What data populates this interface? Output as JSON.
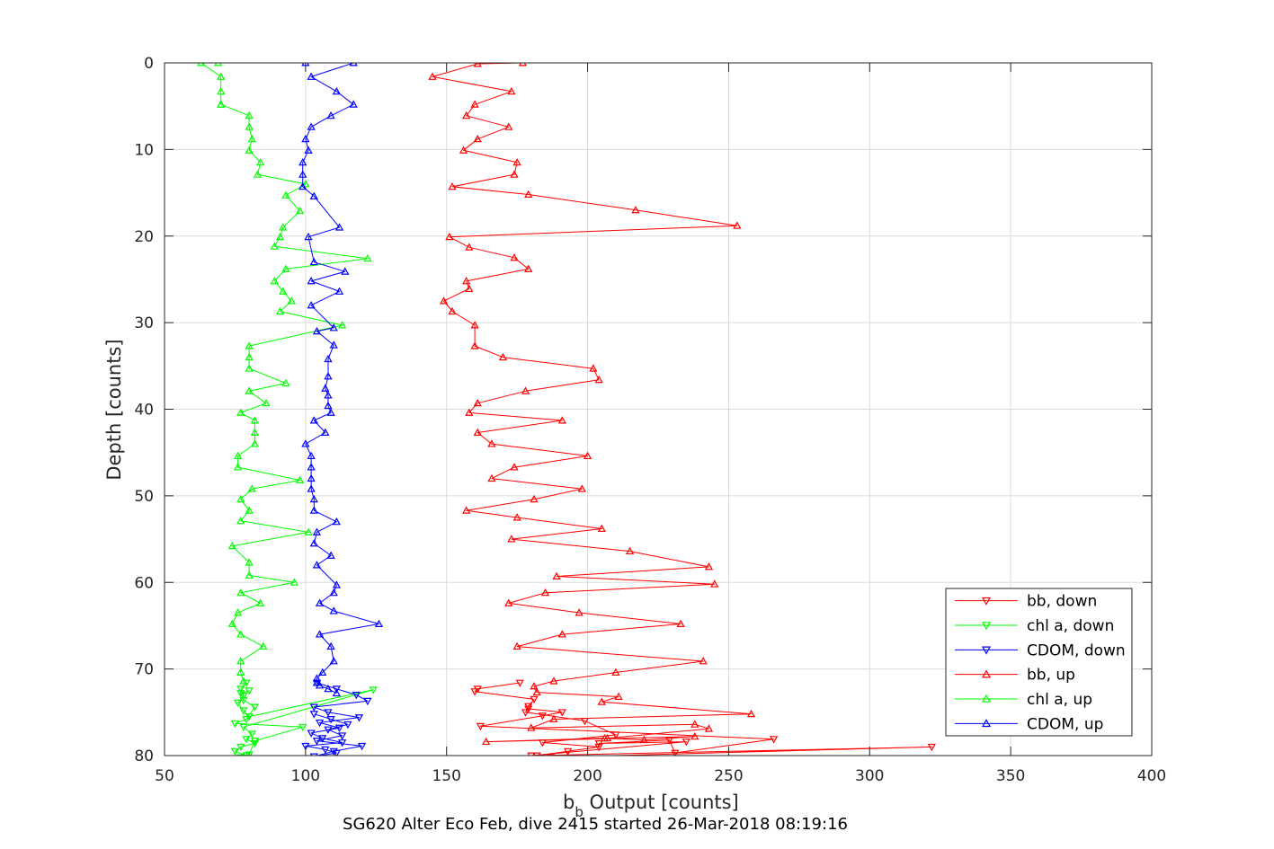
{
  "chart_data": {
    "type": "line",
    "title": "SG620 Alter Eco Feb, dive 2415 started 26-Mar-2018 08:19:16",
    "xlabel_main": "b",
    "xlabel_sub": "b",
    "xlabel_rest": " Output [counts]",
    "ylabel": "Depth [counts]",
    "xlim": [
      50,
      400
    ],
    "ylim": [
      0,
      80
    ],
    "y_reversed": true,
    "grid": true,
    "legend_placement": "bottom-right",
    "xticks": [
      "50",
      "100",
      "150",
      "200",
      "250",
      "300",
      "350",
      "400"
    ],
    "yticks": [
      "0",
      "10",
      "20",
      "30",
      "40",
      "50",
      "60",
      "70",
      "80"
    ],
    "series": [
      {
        "name": "bb, down",
        "color": "#ff0000",
        "marker": "triangle-down",
        "x": [
          176,
          161,
          160,
          181,
          179,
          178,
          199,
          210,
          184,
          204,
          193,
          182,
          322,
          187,
          180,
          235,
          204,
          229,
          231,
          266,
          162,
          184,
          191,
          179
        ],
        "y": [
          71.6,
          72.3,
          72.6,
          73.5,
          74.3,
          75.0,
          76.0,
          77.6,
          78.5,
          79.0,
          79.5,
          80.0,
          79.0,
          80.2,
          80.0,
          78.4,
          78.6,
          78.2,
          79.7,
          78.1,
          76.6,
          75.4,
          75.0,
          74.6
        ]
      },
      {
        "name": "chl a, down",
        "color": "#00ff00",
        "marker": "triangle-down",
        "x": [
          79,
          77,
          78,
          76,
          78,
          80,
          124,
          78,
          81,
          79,
          82,
          77,
          75,
          79,
          77,
          80,
          82,
          99,
          75,
          79,
          82,
          78,
          77,
          80
        ],
        "y": [
          71.6,
          72.3,
          73.1,
          73.9,
          74.8,
          75.5,
          72.4,
          76.7,
          77.5,
          78.1,
          78.6,
          79.0,
          79.5,
          80.0,
          80.2,
          79.9,
          78.3,
          76.7,
          76.3,
          75.8,
          74.4,
          73.6,
          72.8,
          72.5
        ]
      },
      {
        "name": "CDOM, down",
        "color": "#0000ff",
        "marker": "triangle-down",
        "x": [
          104,
          111,
          118,
          122,
          103,
          108,
          119,
          105,
          112,
          102,
          106,
          113,
          100,
          107,
          111,
          103,
          110,
          120,
          104,
          113,
          108,
          115,
          109,
          103
        ],
        "y": [
          71.6,
          72.3,
          73.0,
          73.7,
          74.4,
          75.0,
          75.6,
          76.2,
          76.8,
          77.4,
          78.0,
          78.5,
          78.9,
          79.3,
          79.7,
          80.1,
          79.5,
          78.9,
          78.3,
          77.7,
          77.0,
          76.4,
          75.8,
          75.2
        ]
      },
      {
        "name": "bb, up",
        "color": "#ff0000",
        "marker": "triangle-up",
        "x": [
          177,
          161,
          145,
          173,
          160,
          157,
          172,
          161,
          156,
          175,
          174,
          152,
          179,
          217,
          253,
          151,
          158,
          174,
          179,
          157,
          158,
          149,
          152,
          160,
          160,
          170,
          202,
          204,
          178,
          161,
          158,
          191,
          161,
          166,
          200,
          174,
          166,
          198,
          181,
          157,
          175,
          205,
          173,
          215,
          243,
          189,
          245,
          185,
          172,
          197,
          233,
          191,
          175,
          241,
          210,
          188,
          181,
          182,
          211,
          205,
          258,
          188,
          180,
          238,
          243,
          207,
          220,
          238,
          164,
          206
        ],
        "y": [
          0.0,
          0.1,
          1.6,
          3.3,
          4.8,
          6.1,
          7.4,
          8.8,
          10.1,
          11.5,
          12.9,
          14.3,
          15.2,
          17.0,
          18.8,
          20.1,
          21.3,
          22.5,
          23.8,
          25.2,
          26.1,
          27.5,
          28.7,
          30.3,
          32.7,
          34.0,
          35.3,
          36.6,
          37.9,
          39.3,
          40.4,
          41.3,
          42.7,
          44.0,
          45.4,
          46.7,
          48.0,
          49.2,
          50.4,
          51.7,
          52.5,
          53.8,
          55.0,
          56.4,
          58.2,
          59.3,
          60.2,
          61.2,
          62.4,
          63.5,
          64.8,
          66.0,
          67.4,
          69.1,
          70.4,
          71.4,
          72.0,
          72.7,
          73.2,
          73.8,
          75.2,
          75.8,
          76.8,
          76.4,
          76.9,
          78.0,
          78.2,
          77.8,
          78.4,
          78.0
        ]
      },
      {
        "name": "chl a, up",
        "color": "#00ff00",
        "marker": "triangle-up",
        "x": [
          69,
          63,
          70,
          70,
          70,
          70,
          80,
          80,
          81,
          80,
          84,
          83,
          100,
          93,
          98,
          92,
          91,
          89,
          122,
          93,
          89,
          92,
          95,
          91,
          113,
          80,
          80,
          80,
          93,
          80,
          86,
          77,
          82,
          82,
          82,
          76,
          76,
          98,
          81,
          77,
          80,
          77,
          101,
          74,
          80,
          80,
          96,
          77,
          84,
          76,
          74,
          77,
          85,
          77,
          77,
          78
        ],
        "y": [
          0.0,
          0.0,
          1.6,
          3.3,
          4.8,
          4.8,
          6.1,
          7.4,
          8.8,
          10.1,
          11.5,
          12.9,
          14.0,
          15.3,
          17.1,
          19.0,
          20.1,
          21.2,
          22.6,
          23.8,
          25.2,
          26.4,
          27.5,
          28.7,
          30.3,
          32.7,
          34.0,
          35.3,
          37.0,
          37.9,
          39.3,
          40.4,
          41.3,
          42.7,
          44.0,
          45.4,
          46.7,
          48.2,
          49.2,
          50.4,
          51.7,
          52.9,
          54.2,
          55.8,
          57.7,
          59.2,
          60.0,
          61.2,
          62.4,
          63.5,
          64.8,
          66.0,
          67.4,
          69.1,
          70.4,
          71.4
        ]
      },
      {
        "name": "CDOM, up",
        "color": "#0000ff",
        "marker": "triangle-up",
        "x": [
          100,
          117,
          102,
          111,
          117,
          109,
          102,
          100,
          101,
          99,
          99,
          99,
          103,
          112,
          101,
          103,
          114,
          102,
          112,
          102,
          110,
          104,
          110,
          108,
          108,
          107,
          108,
          108,
          109,
          103,
          107,
          100,
          102,
          102,
          102,
          102,
          103,
          103,
          111,
          104,
          103,
          109,
          104,
          111,
          110,
          105,
          110,
          126,
          105,
          109,
          110,
          106,
          104,
          104,
          105,
          108,
          111
        ],
        "y": [
          0.0,
          0.0,
          1.6,
          3.3,
          4.8,
          6.1,
          7.4,
          8.8,
          10.1,
          11.5,
          12.9,
          14.3,
          15.4,
          19.0,
          20.1,
          23.0,
          24.1,
          25.2,
          26.4,
          28.0,
          30.6,
          31.0,
          32.6,
          34.2,
          36.2,
          37.6,
          38.4,
          39.6,
          40.4,
          41.3,
          42.7,
          44.0,
          45.4,
          46.7,
          48.0,
          49.2,
          50.4,
          51.7,
          53.0,
          54.2,
          55.5,
          56.9,
          58.0,
          60.3,
          61.2,
          62.4,
          63.3,
          64.8,
          66.0,
          67.4,
          69.1,
          70.4,
          71.1,
          71.6,
          71.9,
          72.3,
          72.8
        ]
      }
    ]
  }
}
